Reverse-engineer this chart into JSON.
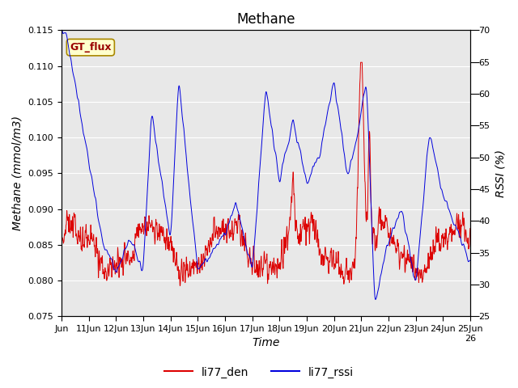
{
  "title": "Methane",
  "xlabel": "Time",
  "ylabel_left": "Methane (mmol/m3)",
  "ylabel_right": "RSSI (%)",
  "ylim_left": [
    0.075,
    0.115
  ],
  "ylim_right": [
    25,
    70
  ],
  "xlim": [
    0,
    15
  ],
  "xtick_labels": [
    "Jun",
    "11Jun",
    "12Jun",
    "13Jun",
    "14Jun",
    "15Jun",
    "16Jun",
    "17Jun",
    "18Jun",
    "19Jun",
    "20Jun",
    "21Jun",
    "22Jun",
    "23Jun",
    "24Jun",
    "25Jun",
    "26"
  ],
  "legend_entries": [
    "li77_den",
    "li77_rssi"
  ],
  "line_colors": [
    "#dd0000",
    "#0000dd"
  ],
  "plot_bg_color": "#e8e8e8",
  "fig_bg_color": "#ffffff",
  "grid_color": "#ffffff",
  "annotation_text": "GT_flux",
  "title_fontsize": 12,
  "axis_fontsize": 10,
  "tick_fontsize": 8,
  "legend_fontsize": 10
}
